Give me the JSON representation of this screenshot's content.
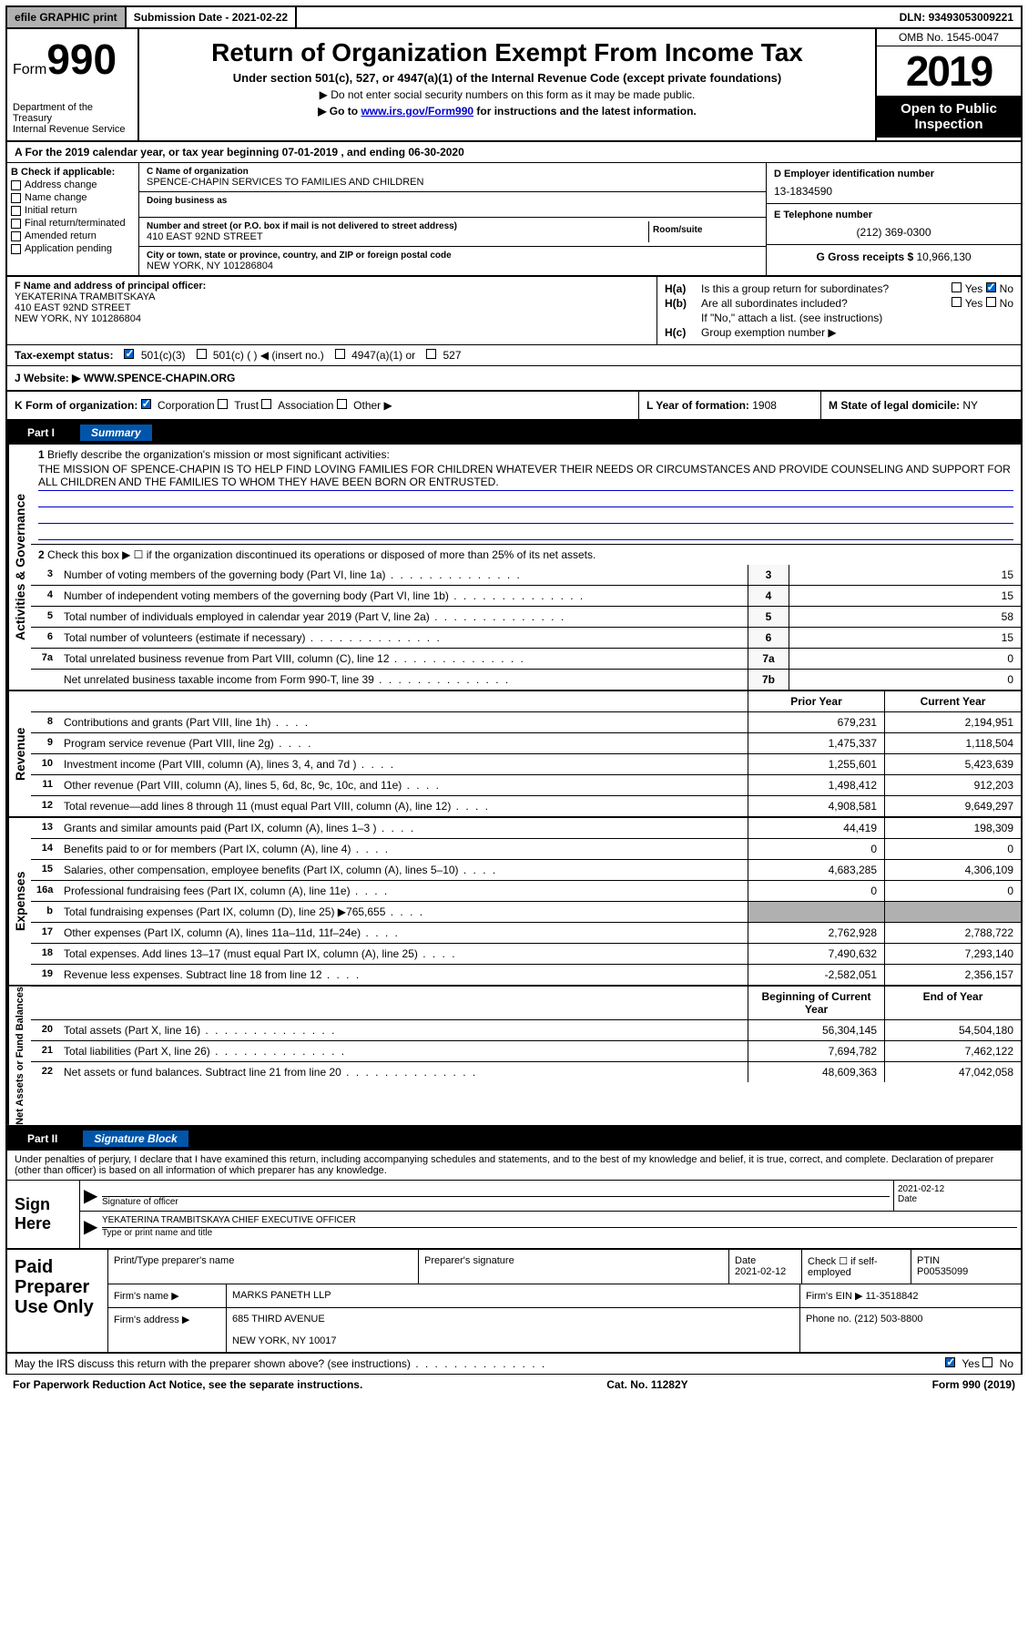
{
  "topbar": {
    "efile": "efile GRAPHIC print",
    "submission_label": "Submission Date - ",
    "submission_date": "2021-02-22",
    "dln_label": "DLN: ",
    "dln": "93493053009221"
  },
  "header": {
    "form_prefix": "Form",
    "form_number": "990",
    "dept": "Department of the Treasury",
    "irs": "Internal Revenue Service",
    "title": "Return of Organization Exempt From Income Tax",
    "subtitle": "Under section 501(c), 527, or 4947(a)(1) of the Internal Revenue Code (except private foundations)",
    "note1": "▶ Do not enter social security numbers on this form as it may be made public.",
    "note2_pre": "▶ Go to ",
    "note2_link": "www.irs.gov/Form990",
    "note2_post": " for instructions and the latest information.",
    "omb": "OMB No. 1545-0047",
    "year": "2019",
    "open1": "Open to Public",
    "open2": "Inspection"
  },
  "line_a": "A For the 2019 calendar year, or tax year beginning 07-01-2019    , and ending 06-30-2020",
  "section_b": {
    "label": "B Check if applicable:",
    "items": [
      "Address change",
      "Name change",
      "Initial return",
      "Final return/terminated",
      "Amended return",
      "Application pending"
    ]
  },
  "section_c": {
    "name_label": "C Name of organization",
    "name": "SPENCE-CHAPIN SERVICES TO FAMILIES AND CHILDREN",
    "dba_label": "Doing business as",
    "addr_label": "Number and street (or P.O. box if mail is not delivered to street address)",
    "addr": "410 EAST 92ND STREET",
    "room_label": "Room/suite",
    "city_label": "City or town, state or province, country, and ZIP or foreign postal code",
    "city": "NEW YORK, NY  101286804"
  },
  "section_d": {
    "ein_label": "D Employer identification number",
    "ein": "13-1834590",
    "phone_label": "E Telephone number",
    "phone": "(212) 369-0300",
    "gross_label": "G Gross receipts $ ",
    "gross": "10,966,130"
  },
  "section_f": {
    "label": "F  Name and address of principal officer:",
    "name": "YEKATERINA TRAMBITSKAYA",
    "addr1": "410 EAST 92ND STREET",
    "addr2": "NEW YORK, NY  101286804"
  },
  "section_h": {
    "ha_label": "H(a)",
    "ha_text": "Is this a group return for subordinates?",
    "hb_label": "H(b)",
    "hb_text": "Are all subordinates included?",
    "hb_note": "If \"No,\" attach a list. (see instructions)",
    "hc_label": "H(c)",
    "hc_text": "Group exemption number ▶",
    "yes": "Yes",
    "no": "No"
  },
  "status": {
    "label": "Tax-exempt status:",
    "opt1": "501(c)(3)",
    "opt2": "501(c) (   ) ◀ (insert no.)",
    "opt3": "4947(a)(1) or",
    "opt4": "527"
  },
  "website": {
    "label": "J    Website: ▶",
    "value": "WWW.SPENCE-CHAPIN.ORG"
  },
  "klm": {
    "k": "K Form of organization:",
    "k_opts": [
      "Corporation",
      "Trust",
      "Association",
      "Other ▶"
    ],
    "l_label": "L Year of formation: ",
    "l_val": "1908",
    "m_label": "M State of legal domicile: ",
    "m_val": "NY"
  },
  "parts": {
    "p1": "Part I",
    "p1_title": "Summary",
    "p2": "Part II",
    "p2_title": "Signature Block"
  },
  "sidetabs": {
    "ag": "Activities & Governance",
    "rev": "Revenue",
    "exp": "Expenses",
    "net": "Net Assets or Fund Balances"
  },
  "summary": {
    "q1": "Briefly describe the organization's mission or most significant activities:",
    "mission": "THE MISSION OF SPENCE-CHAPIN IS TO HELP FIND LOVING FAMILIES FOR CHILDREN WHATEVER THEIR NEEDS OR CIRCUMSTANCES AND PROVIDE COUNSELING AND SUPPORT FOR ALL CHILDREN AND THE FAMILIES TO WHOM THEY HAVE BEEN BORN OR ENTRUSTED.",
    "q2": "Check this box ▶ ☐  if the organization discontinued its operations or disposed of more than 25% of its net assets.",
    "lines": [
      {
        "n": "3",
        "d": "Number of voting members of the governing body (Part VI, line 1a)",
        "box": "3",
        "v": "15"
      },
      {
        "n": "4",
        "d": "Number of independent voting members of the governing body (Part VI, line 1b)",
        "box": "4",
        "v": "15"
      },
      {
        "n": "5",
        "d": "Total number of individuals employed in calendar year 2019 (Part V, line 2a)",
        "box": "5",
        "v": "58"
      },
      {
        "n": "6",
        "d": "Total number of volunteers (estimate if necessary)",
        "box": "6",
        "v": "15"
      },
      {
        "n": "7a",
        "d": "Total unrelated business revenue from Part VIII, column (C), line 12",
        "box": "7a",
        "v": "0"
      },
      {
        "n": "",
        "d": "Net unrelated business taxable income from Form 990-T, line 39",
        "box": "7b",
        "v": "0"
      }
    ],
    "col_headers": {
      "prior": "Prior Year",
      "current": "Current Year"
    },
    "revenue": [
      {
        "n": "8",
        "d": "Contributions and grants (Part VIII, line 1h)",
        "p": "679,231",
        "c": "2,194,951"
      },
      {
        "n": "9",
        "d": "Program service revenue (Part VIII, line 2g)",
        "p": "1,475,337",
        "c": "1,118,504"
      },
      {
        "n": "10",
        "d": "Investment income (Part VIII, column (A), lines 3, 4, and 7d )",
        "p": "1,255,601",
        "c": "5,423,639"
      },
      {
        "n": "11",
        "d": "Other revenue (Part VIII, column (A), lines 5, 6d, 8c, 9c, 10c, and 11e)",
        "p": "1,498,412",
        "c": "912,203"
      },
      {
        "n": "12",
        "d": "Total revenue—add lines 8 through 11 (must equal Part VIII, column (A), line 12)",
        "p": "4,908,581",
        "c": "9,649,297"
      }
    ],
    "expenses": [
      {
        "n": "13",
        "d": "Grants and similar amounts paid (Part IX, column (A), lines 1–3 )",
        "p": "44,419",
        "c": "198,309"
      },
      {
        "n": "14",
        "d": "Benefits paid to or for members (Part IX, column (A), line 4)",
        "p": "0",
        "c": "0"
      },
      {
        "n": "15",
        "d": "Salaries, other compensation, employee benefits (Part IX, column (A), lines 5–10)",
        "p": "4,683,285",
        "c": "4,306,109"
      },
      {
        "n": "16a",
        "d": "Professional fundraising fees (Part IX, column (A), line 11e)",
        "p": "0",
        "c": "0"
      },
      {
        "n": "b",
        "d": "Total fundraising expenses (Part IX, column (D), line 25) ▶765,655",
        "p": "",
        "c": "",
        "gray": true
      },
      {
        "n": "17",
        "d": "Other expenses (Part IX, column (A), lines 11a–11d, 11f–24e)",
        "p": "2,762,928",
        "c": "2,788,722"
      },
      {
        "n": "18",
        "d": "Total expenses. Add lines 13–17 (must equal Part IX, column (A), line 25)",
        "p": "7,490,632",
        "c": "7,293,140"
      },
      {
        "n": "19",
        "d": "Revenue less expenses. Subtract line 18 from line 12",
        "p": "-2,582,051",
        "c": "2,356,157"
      }
    ],
    "net_headers": {
      "begin": "Beginning of Current Year",
      "end": "End of Year"
    },
    "net": [
      {
        "n": "20",
        "d": "Total assets (Part X, line 16)",
        "p": "56,304,145",
        "c": "54,504,180"
      },
      {
        "n": "21",
        "d": "Total liabilities (Part X, line 26)",
        "p": "7,694,782",
        "c": "7,462,122"
      },
      {
        "n": "22",
        "d": "Net assets or fund balances. Subtract line 21 from line 20",
        "p": "48,609,363",
        "c": "47,042,058"
      }
    ]
  },
  "sig": {
    "disclaimer": "Under penalties of perjury, I declare that I have examined this return, including accompanying schedules and statements, and to the best of my knowledge and belief, it is true, correct, and complete. Declaration of preparer (other than officer) is based on all information of which preparer has any knowledge.",
    "sign_here": "Sign Here",
    "sig_officer": "Signature of officer",
    "date_label": "Date",
    "sig_date": "2021-02-12",
    "officer_name": "YEKATERINA TRAMBITSKAYA  CHIEF EXECUTIVE OFFICER",
    "type_name": "Type or print name and title"
  },
  "preparer": {
    "label": "Paid Preparer Use Only",
    "print_name_label": "Print/Type preparer's name",
    "prep_sig_label": "Preparer's signature",
    "date_label": "Date",
    "date": "2021-02-12",
    "check_label": "Check ☐ if self-employed",
    "ptin_label": "PTIN",
    "ptin": "P00535099",
    "firm_name_label": "Firm's name    ▶",
    "firm_name": "MARKS PANETH LLP",
    "firm_ein_label": "Firm's EIN ▶",
    "firm_ein": "11-3518842",
    "firm_addr_label": "Firm's address ▶",
    "firm_addr1": "685 THIRD AVENUE",
    "firm_addr2": "NEW YORK, NY  10017",
    "phone_label": "Phone no. ",
    "phone": "(212) 503-8800"
  },
  "footer": {
    "discuss": "May the IRS discuss this return with the preparer shown above? (see instructions)",
    "yes": "Yes",
    "no": "No",
    "paperwork": "For Paperwork Reduction Act Notice, see the separate instructions.",
    "cat": "Cat. No. 11282Y",
    "form": "Form 990 (2019)"
  }
}
